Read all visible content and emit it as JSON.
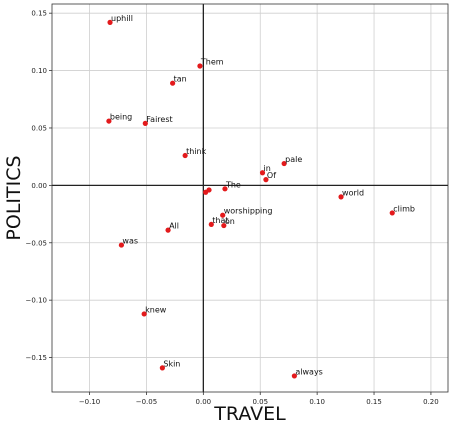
{
  "chart_data": {
    "type": "scatter",
    "title": "",
    "xlabel": "TRAVEL",
    "ylabel": "POLITICS",
    "xlim": [
      -0.133,
      0.215
    ],
    "ylim": [
      -0.18,
      0.158
    ],
    "xticks": [
      -0.1,
      -0.05,
      0.0,
      0.05,
      0.1,
      0.15,
      0.2
    ],
    "xtick_labels": [
      "−0.10",
      "−0.05",
      "0.00",
      "0.05",
      "0.10",
      "0.15",
      "0.20"
    ],
    "yticks": [
      -0.15,
      -0.1,
      -0.05,
      0.0,
      0.05,
      0.1,
      0.15
    ],
    "ytick_labels": [
      "−0.15",
      "−0.10",
      "−0.05",
      "0.00",
      "0.05",
      "0.10",
      "0.15"
    ],
    "grid": true,
    "zero_lines": true,
    "marker_color": "#e31a1c",
    "points": [
      {
        "label": "uphill",
        "x": -0.082,
        "y": 0.142
      },
      {
        "label": "Them",
        "x": -0.003,
        "y": 0.104
      },
      {
        "label": "tan",
        "x": -0.027,
        "y": 0.089
      },
      {
        "label": "being",
        "x": -0.083,
        "y": 0.056
      },
      {
        "label": "Fairest",
        "x": -0.051,
        "y": 0.054
      },
      {
        "label": "think",
        "x": -0.016,
        "y": 0.026
      },
      {
        "label": "pale",
        "x": 0.071,
        "y": 0.019
      },
      {
        "label": "in",
        "x": 0.052,
        "y": 0.011
      },
      {
        "label": "Of",
        "x": 0.055,
        "y": 0.005
      },
      {
        "label": "The",
        "x": 0.019,
        "y": -0.003
      },
      {
        "label": "",
        "x": 0.005,
        "y": -0.004
      },
      {
        "label": "",
        "x": 0.002,
        "y": -0.006
      },
      {
        "label": "world",
        "x": 0.121,
        "y": -0.01
      },
      {
        "label": "climb",
        "x": 0.166,
        "y": -0.024
      },
      {
        "label": "worshipping",
        "x": 0.017,
        "y": -0.026
      },
      {
        "label": "that",
        "x": 0.007,
        "y": -0.034
      },
      {
        "label": "on",
        "x": 0.018,
        "y": -0.035
      },
      {
        "label": "All",
        "x": -0.031,
        "y": -0.039
      },
      {
        "label": "was",
        "x": -0.072,
        "y": -0.052
      },
      {
        "label": "knew",
        "x": -0.052,
        "y": -0.112
      },
      {
        "label": "Skin",
        "x": -0.036,
        "y": -0.159
      },
      {
        "label": "always",
        "x": 0.08,
        "y": -0.166
      }
    ]
  }
}
